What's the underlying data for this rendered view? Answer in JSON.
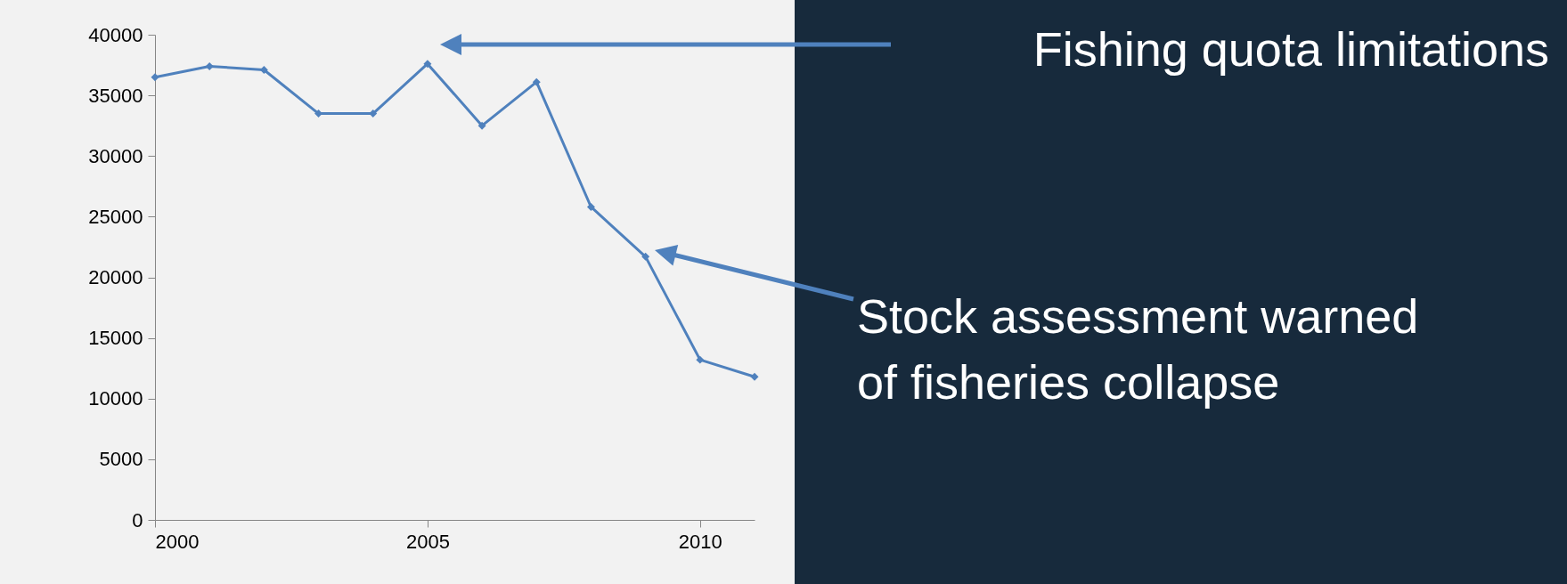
{
  "chart_data": {
    "type": "line",
    "x": [
      2000,
      2001,
      2002,
      2003,
      2004,
      2005,
      2006,
      2007,
      2008,
      2009,
      2010,
      2011
    ],
    "series": [
      {
        "color": "#4f81bd",
        "values": [
          36500,
          37400,
          37100,
          33500,
          33500,
          37600,
          32500,
          36100,
          25800,
          21700,
          13200,
          11800
        ]
      }
    ],
    "xlim": [
      2000,
      2011
    ],
    "xticks": [
      2000,
      2005,
      2010
    ],
    "ylim": [
      0,
      40000
    ],
    "yticks": [
      0,
      5000,
      10000,
      15000,
      20000,
      25000,
      30000,
      35000,
      40000
    ],
    "grid": false,
    "marker": "diamond",
    "line_style": "solid",
    "annotations": [
      "Fishing quota limitations",
      "Stock assessment warned of fisheries collapse"
    ]
  }
}
